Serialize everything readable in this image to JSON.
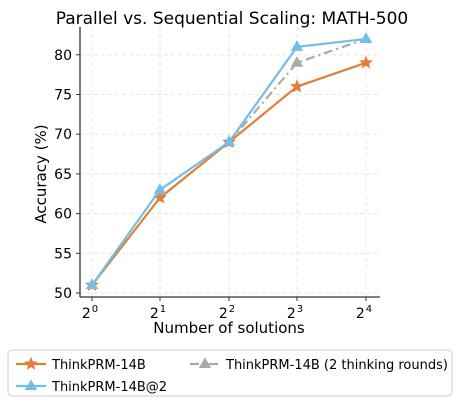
{
  "chart_data": {
    "type": "line",
    "title": "Parallel vs. Sequential Scaling: MATH-500",
    "xlabel": "Number of solutions",
    "ylabel": "Accuracy (%)",
    "x": [
      1,
      2,
      4,
      8,
      16
    ],
    "x_tick_labels": [
      {
        "base": "2",
        "exp": "0"
      },
      {
        "base": "2",
        "exp": "1"
      },
      {
        "base": "2",
        "exp": "2"
      },
      {
        "base": "2",
        "exp": "3"
      },
      {
        "base": "2",
        "exp": "4"
      }
    ],
    "x_scale": "log2",
    "ylim": [
      49.5,
      83.5
    ],
    "y_ticks": [
      50,
      55,
      60,
      65,
      70,
      75,
      80
    ],
    "grid": true,
    "legend_position": "bottom",
    "series": [
      {
        "name": "ThinkPRM-14B",
        "color": "#e07f3a",
        "marker": "star",
        "line_style": "solid",
        "values": [
          51,
          62,
          69,
          76,
          79
        ]
      },
      {
        "name": "ThinkPRM-14B@2",
        "color": "#72bfe6",
        "marker": "triangle",
        "line_style": "solid",
        "values": [
          51,
          63,
          69,
          81,
          82
        ]
      },
      {
        "name": "ThinkPRM-14B (2 thinking rounds)",
        "color": "#aaaaaa",
        "marker": "triangle",
        "line_style": "dashdot",
        "values": [
          null,
          null,
          69,
          79,
          82
        ]
      }
    ]
  }
}
